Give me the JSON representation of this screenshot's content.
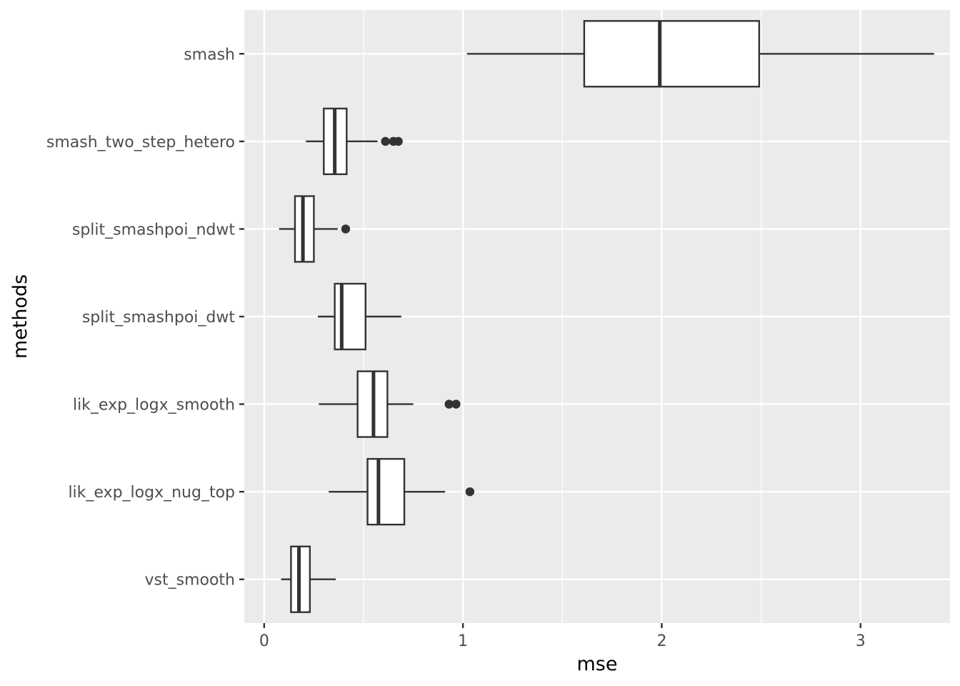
{
  "chart_data": {
    "type": "boxplot",
    "orientation": "horizontal",
    "xlabel": "mse",
    "ylabel": "methods",
    "xlim": [
      -0.1,
      3.45
    ],
    "x_ticks": [
      0,
      1,
      2,
      3
    ],
    "x_minor_ticks": [
      0.5,
      1.5,
      2.5
    ],
    "grid": true,
    "panel_background": "#ebebeb",
    "box_fill": "#ffffff",
    "box_stroke": "#333333",
    "categories": [
      "smash",
      "smash_two_step_hetero",
      "split_smashpoi_ndwt",
      "split_smashpoi_dwt",
      "lik_exp_logx_smooth",
      "lik_exp_logx_nug_top",
      "vst_smooth"
    ],
    "series": [
      {
        "category": "smash",
        "whisker_low": 1.02,
        "q1": 1.61,
        "median": 1.99,
        "q3": 2.49,
        "whisker_high": 3.37,
        "outliers": []
      },
      {
        "category": "smash_two_step_hetero",
        "whisker_low": 0.21,
        "q1": 0.3,
        "median": 0.355,
        "q3": 0.415,
        "whisker_high": 0.57,
        "outliers": [
          0.61,
          0.65,
          0.675
        ]
      },
      {
        "category": "split_smashpoi_ndwt",
        "whisker_low": 0.075,
        "q1": 0.155,
        "median": 0.195,
        "q3": 0.25,
        "whisker_high": 0.37,
        "outliers": [
          0.41
        ]
      },
      {
        "category": "split_smashpoi_dwt",
        "whisker_low": 0.27,
        "q1": 0.355,
        "median": 0.39,
        "q3": 0.51,
        "whisker_high": 0.69,
        "outliers": []
      },
      {
        "category": "lik_exp_logx_smooth",
        "whisker_low": 0.275,
        "q1": 0.47,
        "median": 0.55,
        "q3": 0.62,
        "whisker_high": 0.75,
        "outliers": [
          0.93,
          0.965
        ]
      },
      {
        "category": "lik_exp_logx_nug_top",
        "whisker_low": 0.325,
        "q1": 0.52,
        "median": 0.575,
        "q3": 0.705,
        "whisker_high": 0.91,
        "outliers": [
          1.035
        ]
      },
      {
        "category": "vst_smooth",
        "whisker_low": 0.085,
        "q1": 0.135,
        "median": 0.175,
        "q3": 0.23,
        "whisker_high": 0.36,
        "outliers": []
      }
    ]
  }
}
